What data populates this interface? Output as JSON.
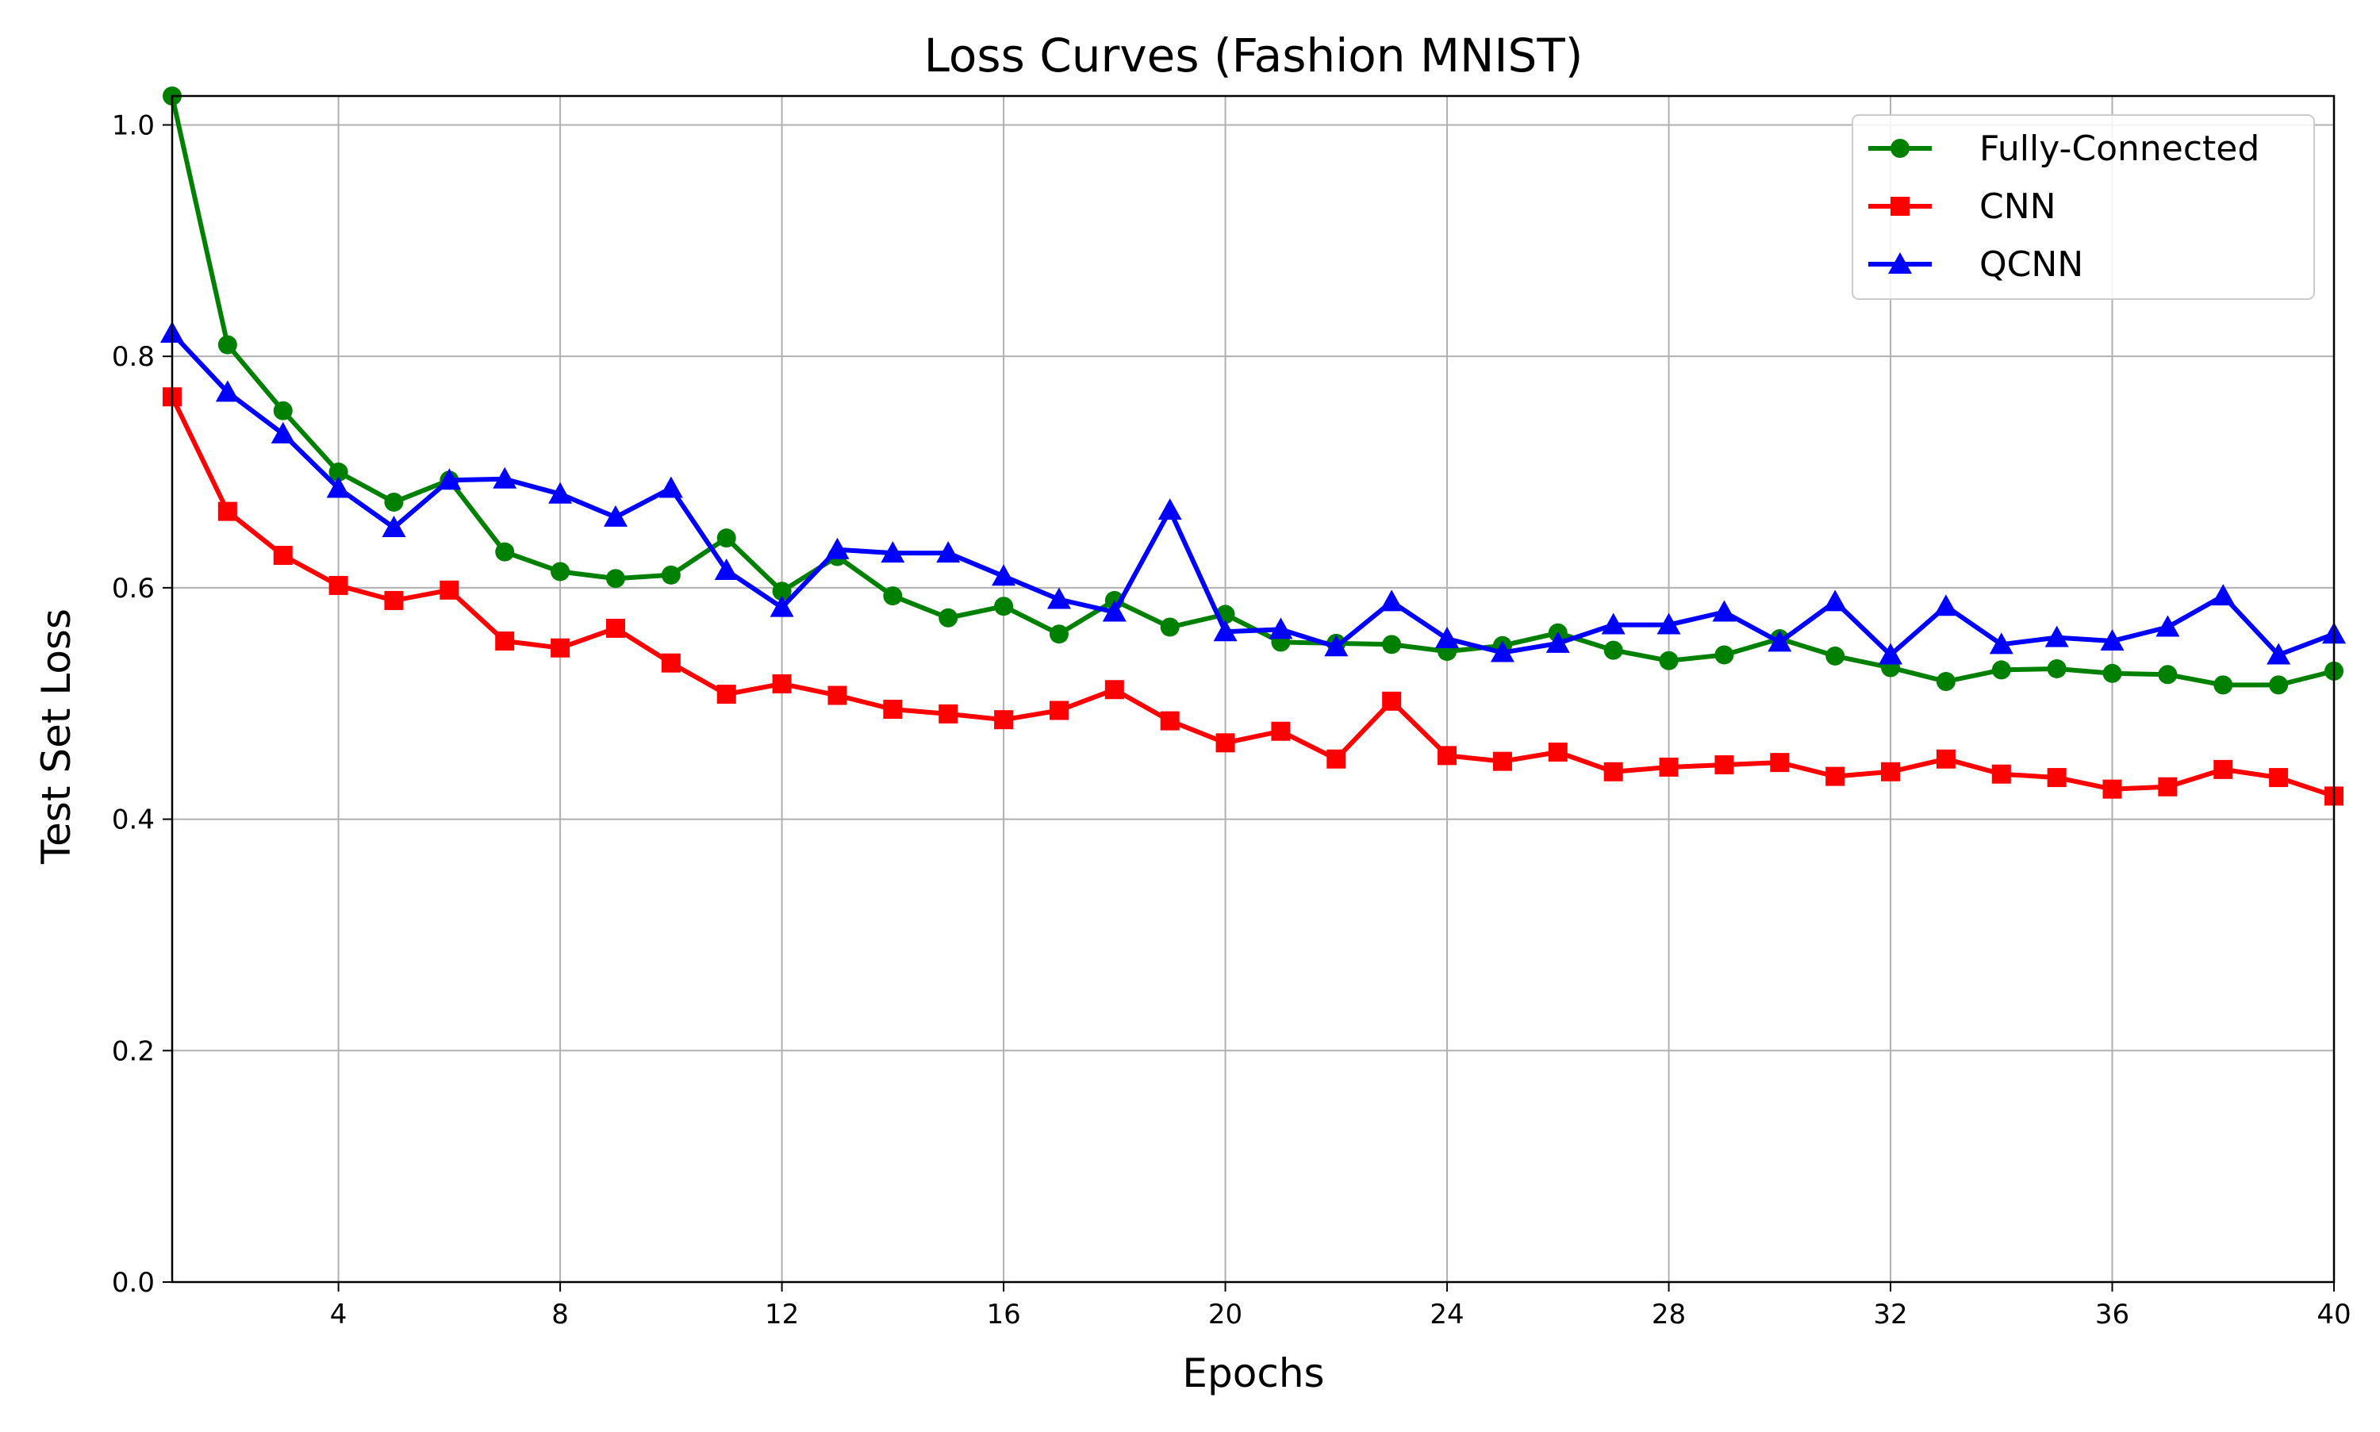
{
  "chart_data": {
    "type": "line",
    "title": "Loss Curves (Fashion MNIST)",
    "xlabel": "Epochs",
    "ylabel": "Test Set Loss",
    "xlim": [
      1,
      40
    ],
    "ylim": [
      0.0,
      1.0
    ],
    "xticks": [
      4,
      8,
      12,
      16,
      20,
      24,
      28,
      32,
      36,
      40
    ],
    "xtick_labels": [
      "4",
      "8",
      "12",
      "16",
      "20",
      "24",
      "28",
      "32",
      "36",
      "40"
    ],
    "yticks": [
      0.0,
      0.2,
      0.4,
      0.6,
      0.8,
      1.0
    ],
    "ytick_labels": [
      "0.0",
      "0.2",
      "0.4",
      "0.6",
      "0.8",
      "1.0"
    ],
    "grid": true,
    "legend_position": "top-right",
    "x": [
      1,
      2,
      3,
      4,
      5,
      6,
      7,
      8,
      9,
      10,
      11,
      12,
      13,
      14,
      15,
      16,
      17,
      18,
      19,
      20,
      21,
      22,
      23,
      24,
      25,
      26,
      27,
      28,
      29,
      30,
      31,
      32,
      33,
      34,
      35,
      36,
      37,
      38,
      39,
      40
    ],
    "series": [
      {
        "name": "Fully-Connected",
        "color": "#008000",
        "marker": "circle",
        "values": [
          1.025,
          0.81,
          0.753,
          0.7,
          0.674,
          0.693,
          0.631,
          0.614,
          0.608,
          0.611,
          0.643,
          0.597,
          0.627,
          0.593,
          0.574,
          0.584,
          0.56,
          0.589,
          0.566,
          0.577,
          0.553,
          0.552,
          0.551,
          0.545,
          0.55,
          0.561,
          0.546,
          0.537,
          0.542,
          0.556,
          0.541,
          0.531,
          0.519,
          0.529,
          0.53,
          0.526,
          0.525,
          0.516,
          0.516,
          0.528
        ]
      },
      {
        "name": "CNN",
        "color": "#ff0000",
        "marker": "square",
        "values": [
          0.765,
          0.666,
          0.628,
          0.602,
          0.589,
          0.598,
          0.554,
          0.548,
          0.565,
          0.535,
          0.508,
          0.517,
          0.507,
          0.495,
          0.491,
          0.486,
          0.494,
          0.512,
          0.485,
          0.466,
          0.476,
          0.452,
          0.502,
          0.455,
          0.45,
          0.458,
          0.441,
          0.445,
          0.447,
          0.449,
          0.437,
          0.441,
          0.452,
          0.439,
          0.436,
          0.426,
          0.428,
          0.443,
          0.436,
          0.42
        ]
      },
      {
        "name": "QCNN",
        "color": "#0000ff",
        "marker": "triangle",
        "values": [
          0.82,
          0.769,
          0.733,
          0.686,
          0.652,
          0.693,
          0.694,
          0.681,
          0.661,
          0.686,
          0.615,
          0.583,
          0.633,
          0.63,
          0.63,
          0.61,
          0.59,
          0.579,
          0.667,
          0.562,
          0.564,
          0.549,
          0.588,
          0.556,
          0.544,
          0.552,
          0.568,
          0.568,
          0.579,
          0.553,
          0.588,
          0.542,
          0.584,
          0.551,
          0.557,
          0.554,
          0.566,
          0.593,
          0.542,
          0.56
        ]
      }
    ]
  }
}
